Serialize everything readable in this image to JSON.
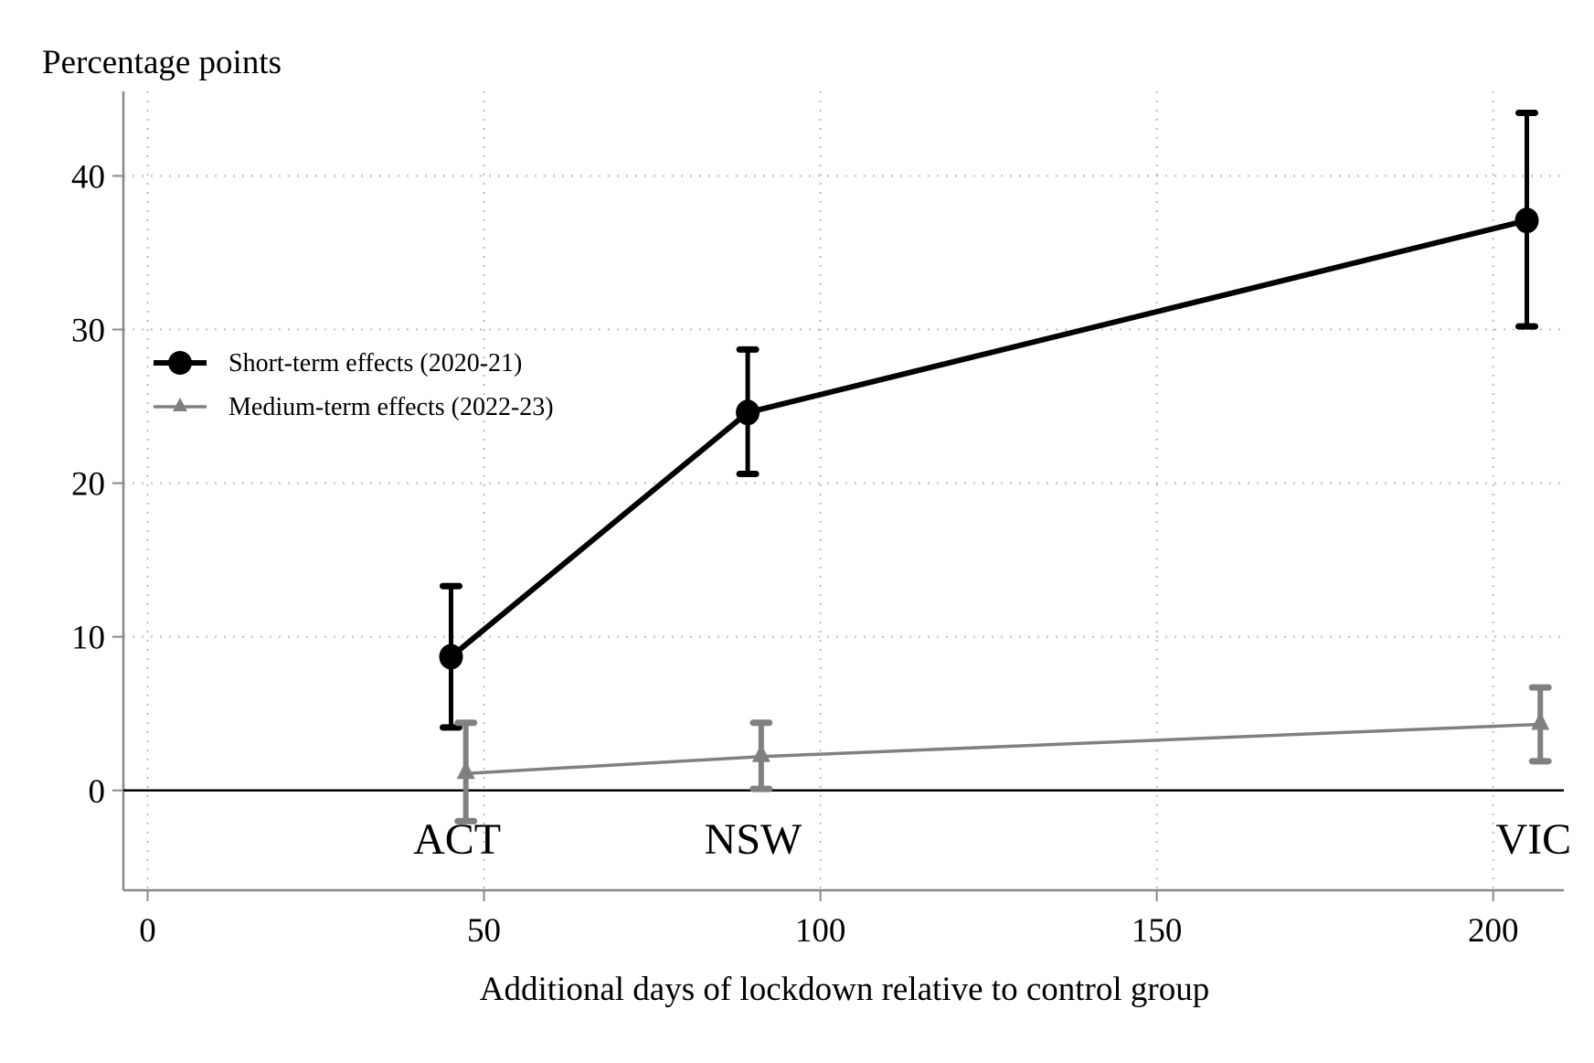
{
  "chart_data": {
    "type": "line",
    "title": "",
    "ylabel": "Percentage points",
    "xlabel": "Additional days of lockdown relative to control group",
    "xlim": [
      -3.6,
      210.5
    ],
    "ylim": [
      -6.5,
      45.5
    ],
    "xticks": [
      0,
      50,
      100,
      150,
      200
    ],
    "yticks": [
      0,
      10,
      20,
      30,
      40
    ],
    "grid": true,
    "legend_position": "left-middle",
    "point_labels": [
      {
        "label": "ACT",
        "x": 46
      },
      {
        "label": "NSW",
        "x": 90
      },
      {
        "label": "VIC",
        "x": 206
      }
    ],
    "series": [
      {
        "name": "Short-term effects (2020-21)",
        "color": "#000000",
        "marker": "circle",
        "points": [
          {
            "x": 45.1,
            "y": 8.7,
            "ci_low": 4.1,
            "ci_high": 13.3
          },
          {
            "x": 89.2,
            "y": 24.6,
            "ci_low": 20.6,
            "ci_high": 28.7
          },
          {
            "x": 205.0,
            "y": 37.1,
            "ci_low": 30.2,
            "ci_high": 44.1
          }
        ]
      },
      {
        "name": "Medium-term effects (2022-23)",
        "color": "#808080",
        "marker": "triangle",
        "points": [
          {
            "x": 47.3,
            "y": 1.1,
            "ci_low": -2.0,
            "ci_high": 4.4
          },
          {
            "x": 91.2,
            "y": 2.2,
            "ci_low": 0.1,
            "ci_high": 4.4
          },
          {
            "x": 207.0,
            "y": 4.3,
            "ci_low": 1.9,
            "ci_high": 6.7
          }
        ]
      }
    ]
  }
}
